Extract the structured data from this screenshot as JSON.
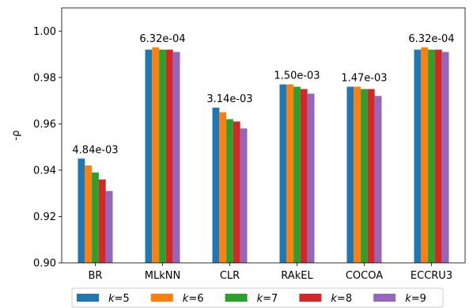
{
  "chart_data": {
    "type": "bar",
    "title": "",
    "xlabel": "",
    "ylabel": "-ρ",
    "ylim": [
      0.9,
      1.01
    ],
    "yticks": [
      "0.90",
      "0.92",
      "0.94",
      "0.96",
      "0.98",
      "1.00"
    ],
    "grid": false,
    "legend_placement": "bottom",
    "categories": [
      "BR",
      "MLkNN",
      "CLR",
      "RAkEL",
      "COCOA",
      "ECCRU3"
    ],
    "annotations": [
      "4.84e-03",
      "6.32e-04",
      "3.14e-03",
      "1.50e-03",
      "1.47e-03",
      "6.32e-04"
    ],
    "series": [
      {
        "name": "k=5",
        "legend_var": "k",
        "legend_value": "=5",
        "color": "#1f77b4",
        "values": [
          0.945,
          0.992,
          0.967,
          0.977,
          0.976,
          0.992
        ]
      },
      {
        "name": "k=6",
        "legend_var": "k",
        "legend_value": "=6",
        "color": "#ff7f0e",
        "values": [
          0.942,
          0.993,
          0.965,
          0.977,
          0.976,
          0.993
        ]
      },
      {
        "name": "k=7",
        "legend_var": "k",
        "legend_value": "=7",
        "color": "#2ca02c",
        "values": [
          0.939,
          0.992,
          0.962,
          0.976,
          0.975,
          0.992
        ]
      },
      {
        "name": "k=8",
        "legend_var": "k",
        "legend_value": "=8",
        "color": "#d62728",
        "values": [
          0.936,
          0.992,
          0.961,
          0.975,
          0.975,
          0.992
        ]
      },
      {
        "name": "k=9",
        "legend_var": "k",
        "legend_value": "=9",
        "color": "#9467bd",
        "values": [
          0.931,
          0.991,
          0.958,
          0.973,
          0.972,
          0.991
        ]
      }
    ]
  }
}
